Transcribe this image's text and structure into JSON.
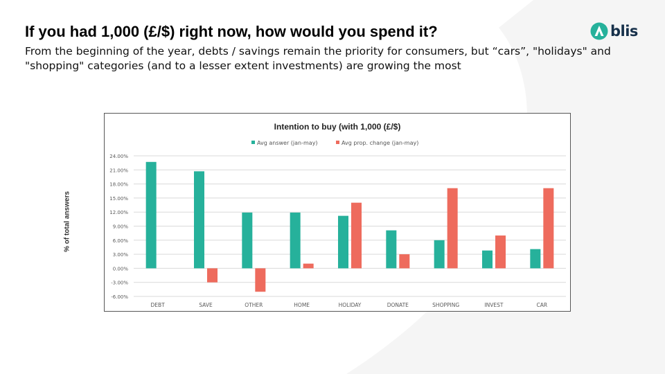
{
  "slide": {
    "title": "If you had 1,000 (£/$) right now, how would you spend it?",
    "subtitle": "From the beginning of the year, debts / savings remain the priority for consumers, but “cars”, \"holidays\" and \"shopping\" categories (and to a lesser extent investments) are growing the most",
    "logo_text": "blis",
    "y_axis_title": "% of total answers"
  },
  "colors": {
    "teal": "#26b19b",
    "coral": "#ee6b5d",
    "logo_mark": "#26b19b",
    "logo_text": "#16304a"
  },
  "chart_data": {
    "type": "bar",
    "title": "Intention to buy (with  1,000 (£/$)",
    "ylabel": "% of total answers",
    "xlabel": "",
    "legend_position": "top",
    "grid": true,
    "ylim": [
      -6,
      24
    ],
    "yticks": [
      24,
      21,
      18,
      15,
      12,
      9,
      6,
      3,
      0,
      -3,
      -6
    ],
    "ytick_labels": [
      "24.00%",
      "21.00%",
      "18.00%",
      "15.00%",
      "12.00%",
      "9.00%",
      "6.00%",
      "3.00%",
      "0.00%",
      "-3.00%",
      "-6.00%"
    ],
    "categories": [
      "DEBT",
      "SAVE",
      "OTHER",
      "HOME",
      "HOLIDAY",
      "DONATE",
      "SHOPPING",
      "INVEST",
      "CAR"
    ],
    "series": [
      {
        "name": "Avg answer (jan-may)",
        "color": "#26b19b",
        "values": [
          22.7,
          20.7,
          11.9,
          11.9,
          11.2,
          8.1,
          6.0,
          3.8,
          4.1
        ]
      },
      {
        "name": "Avg prop. change (jan-may)",
        "color": "#ee6b5d",
        "values": [
          null,
          -3.0,
          -5.0,
          1.0,
          14.0,
          3.0,
          17.1,
          7.0,
          17.1
        ]
      }
    ]
  }
}
